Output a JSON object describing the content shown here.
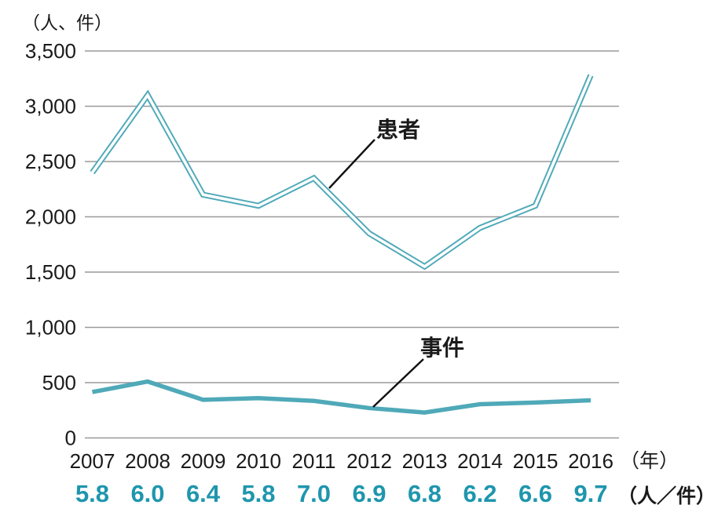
{
  "chart_data": {
    "type": "line",
    "y_axis_title": "（人、件）",
    "x_axis_unit_label": "（年）",
    "ratio_unit_label": "（人／件）",
    "categories": [
      "2007",
      "2008",
      "2009",
      "2010",
      "2011",
      "2012",
      "2013",
      "2014",
      "2015",
      "2016"
    ],
    "series": [
      {
        "name": "患者",
        "style": "double-outline",
        "values": [
          2400,
          3100,
          2200,
          2100,
          2350,
          1850,
          1550,
          1900,
          2100,
          3280
        ]
      },
      {
        "name": "事件",
        "style": "solid",
        "values": [
          415,
          510,
          345,
          360,
          335,
          270,
          230,
          305,
          320,
          340
        ]
      }
    ],
    "ratios_per_year": [
      "5.8",
      "6.0",
      "6.4",
      "5.8",
      "7.0",
      "6.9",
      "6.8",
      "6.2",
      "6.6",
      "9.7"
    ],
    "y_ticks": [
      {
        "label": "3,500",
        "value": 3500
      },
      {
        "label": "3,000",
        "value": 3000
      },
      {
        "label": "2,500",
        "value": 2500
      },
      {
        "label": "2,000",
        "value": 2000
      },
      {
        "label": "1,500",
        "value": 1500
      },
      {
        "label": "1,000",
        "value": 1000
      },
      {
        "label": "500",
        "value": 500
      },
      {
        "label": "0",
        "value": 0
      }
    ],
    "ylim": [
      0,
      3500
    ],
    "grid": "horizontal",
    "legend_position": "inline-annotations",
    "colors": {
      "line_teal": "#4FA9B8",
      "ratio_text_teal": "#1E96AD",
      "grid_gray": "#999999",
      "text_black": "#1A1A1A",
      "callout_black": "#111111"
    }
  }
}
